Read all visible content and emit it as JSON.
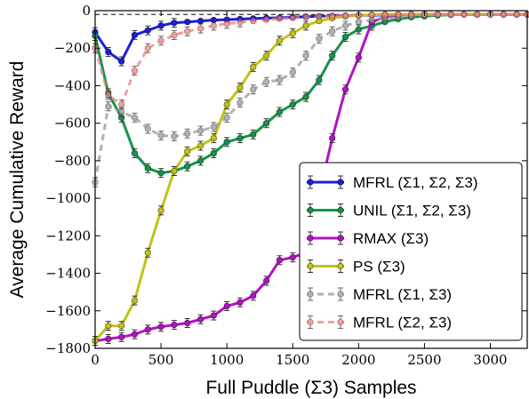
{
  "chart_data": {
    "type": "line",
    "xlabel": "Full Puddle (Σ3) Samples",
    "ylabel": "Average Cumulative Reward",
    "xlim": [
      0,
      3280
    ],
    "ylim": [
      -1800,
      0
    ],
    "xticks": [
      0,
      500,
      1000,
      1500,
      2000,
      2500,
      3000
    ],
    "yticks": [
      0,
      -200,
      -400,
      -600,
      -800,
      -1000,
      -1200,
      -1400,
      -1600,
      -1800
    ],
    "reference_line_y": -20,
    "legend_position": "bottom-right",
    "series": [
      {
        "name": "MFRL (Σ1, Σ2, Σ3)",
        "color": "#1f1fd6",
        "style": "solid",
        "points": [
          [
            0,
            -115
          ],
          [
            100,
            -220
          ],
          [
            200,
            -270
          ],
          [
            300,
            -130
          ],
          [
            400,
            -105
          ],
          [
            500,
            -80
          ],
          [
            600,
            -65
          ],
          [
            700,
            -60
          ],
          [
            800,
            -55
          ],
          [
            900,
            -50
          ],
          [
            1000,
            -48
          ],
          [
            1100,
            -45
          ],
          [
            1200,
            -42
          ],
          [
            1300,
            -40
          ],
          [
            1400,
            -38
          ],
          [
            1500,
            -35
          ],
          [
            1600,
            -32
          ],
          [
            1700,
            -30
          ],
          [
            1800,
            -28
          ],
          [
            1900,
            -27
          ],
          [
            2000,
            -25
          ],
          [
            2100,
            -24
          ],
          [
            2200,
            -23
          ],
          [
            2300,
            -22
          ],
          [
            2400,
            -21
          ],
          [
            2500,
            -21
          ],
          [
            2600,
            -20
          ],
          [
            2700,
            -20
          ],
          [
            2800,
            -20
          ],
          [
            2900,
            -20
          ],
          [
            3000,
            -20
          ],
          [
            3100,
            -20
          ],
          [
            3200,
            -20
          ],
          [
            3280,
            -20
          ]
        ]
      },
      {
        "name": "UNIL (Σ1, Σ2, Σ3)",
        "color": "#17934a",
        "style": "solid",
        "points": [
          [
            0,
            -135
          ],
          [
            100,
            -440
          ],
          [
            200,
            -570
          ],
          [
            300,
            -760
          ],
          [
            400,
            -840
          ],
          [
            500,
            -865
          ],
          [
            600,
            -855
          ],
          [
            700,
            -830
          ],
          [
            800,
            -800
          ],
          [
            900,
            -760
          ],
          [
            1000,
            -700
          ],
          [
            1100,
            -680
          ],
          [
            1200,
            -660
          ],
          [
            1300,
            -600
          ],
          [
            1400,
            -540
          ],
          [
            1500,
            -500
          ],
          [
            1600,
            -460
          ],
          [
            1700,
            -370
          ],
          [
            1800,
            -240
          ],
          [
            1900,
            -140
          ],
          [
            2000,
            -100
          ],
          [
            2100,
            -80
          ],
          [
            2200,
            -60
          ],
          [
            2300,
            -45
          ],
          [
            2400,
            -35
          ],
          [
            2500,
            -30
          ],
          [
            2600,
            -25
          ],
          [
            2700,
            -22
          ],
          [
            2800,
            -20
          ],
          [
            2900,
            -20
          ],
          [
            3000,
            -20
          ],
          [
            3100,
            -20
          ],
          [
            3200,
            -20
          ],
          [
            3280,
            -20
          ]
        ]
      },
      {
        "name": "RMAX (Σ3)",
        "color": "#b015c0",
        "style": "solid",
        "points": [
          [
            0,
            -1760
          ],
          [
            100,
            -1750
          ],
          [
            200,
            -1740
          ],
          [
            300,
            -1725
          ],
          [
            400,
            -1700
          ],
          [
            500,
            -1685
          ],
          [
            600,
            -1675
          ],
          [
            700,
            -1665
          ],
          [
            800,
            -1645
          ],
          [
            900,
            -1625
          ],
          [
            1000,
            -1575
          ],
          [
            1100,
            -1555
          ],
          [
            1200,
            -1520
          ],
          [
            1300,
            -1440
          ],
          [
            1400,
            -1330
          ],
          [
            1500,
            -1315
          ],
          [
            1600,
            -1290
          ],
          [
            1700,
            -980
          ],
          [
            1800,
            -680
          ],
          [
            1900,
            -420
          ],
          [
            2000,
            -250
          ],
          [
            2100,
            -60
          ],
          [
            2200,
            -35
          ],
          [
            2300,
            -25
          ],
          [
            2400,
            -20
          ],
          [
            2500,
            -20
          ],
          [
            2600,
            -20
          ],
          [
            2700,
            -20
          ],
          [
            2800,
            -20
          ],
          [
            2900,
            -20
          ],
          [
            3000,
            -20
          ],
          [
            3100,
            -20
          ],
          [
            3200,
            -20
          ],
          [
            3280,
            -20
          ]
        ]
      },
      {
        "name": "PS (Σ3)",
        "color": "#c2c21a",
        "style": "solid",
        "points": [
          [
            0,
            -1760
          ],
          [
            100,
            -1680
          ],
          [
            200,
            -1680
          ],
          [
            300,
            -1545
          ],
          [
            400,
            -1290
          ],
          [
            500,
            -1065
          ],
          [
            600,
            -855
          ],
          [
            700,
            -750
          ],
          [
            800,
            -720
          ],
          [
            900,
            -680
          ],
          [
            1000,
            -500
          ],
          [
            1100,
            -410
          ],
          [
            1200,
            -300
          ],
          [
            1300,
            -240
          ],
          [
            1400,
            -160
          ],
          [
            1500,
            -120
          ],
          [
            1600,
            -80
          ],
          [
            1700,
            -55
          ],
          [
            1800,
            -40
          ],
          [
            1900,
            -30
          ],
          [
            2000,
            -25
          ],
          [
            2100,
            -22
          ],
          [
            2200,
            -20
          ],
          [
            2300,
            -20
          ],
          [
            2400,
            -20
          ],
          [
            2500,
            -20
          ],
          [
            2600,
            -20
          ],
          [
            2700,
            -20
          ],
          [
            2800,
            -20
          ],
          [
            2900,
            -20
          ],
          [
            3000,
            -20
          ],
          [
            3100,
            -20
          ],
          [
            3200,
            -20
          ],
          [
            3280,
            -20
          ]
        ]
      },
      {
        "name": "MFRL (Σ1, Σ3)",
        "color": "#999999",
        "style": "dashed",
        "points": [
          [
            0,
            -915
          ],
          [
            100,
            -510
          ],
          [
            200,
            -540
          ],
          [
            300,
            -570
          ],
          [
            400,
            -630
          ],
          [
            500,
            -665
          ],
          [
            600,
            -670
          ],
          [
            700,
            -655
          ],
          [
            800,
            -640
          ],
          [
            900,
            -620
          ],
          [
            1000,
            -570
          ],
          [
            1100,
            -490
          ],
          [
            1200,
            -420
          ],
          [
            1300,
            -380
          ],
          [
            1400,
            -370
          ],
          [
            1500,
            -330
          ],
          [
            1600,
            -240
          ],
          [
            1700,
            -150
          ],
          [
            1800,
            -110
          ],
          [
            1900,
            -80
          ],
          [
            2000,
            -60
          ],
          [
            2100,
            -50
          ],
          [
            2200,
            -40
          ],
          [
            2300,
            -35
          ],
          [
            2400,
            -30
          ],
          [
            2500,
            -25
          ],
          [
            2600,
            -22
          ],
          [
            2700,
            -20
          ],
          [
            2800,
            -20
          ],
          [
            2900,
            -20
          ],
          [
            3000,
            -20
          ],
          [
            3100,
            -20
          ],
          [
            3200,
            -20
          ],
          [
            3280,
            -20
          ]
        ]
      },
      {
        "name": "MFRL (Σ2, Σ3)",
        "color": "#f08080",
        "style": "dashed",
        "points": [
          [
            0,
            -200
          ],
          [
            100,
            -450
          ],
          [
            200,
            -500
          ],
          [
            300,
            -320
          ],
          [
            400,
            -200
          ],
          [
            500,
            -160
          ],
          [
            600,
            -130
          ],
          [
            700,
            -110
          ],
          [
            800,
            -95
          ],
          [
            900,
            -80
          ],
          [
            1000,
            -70
          ],
          [
            1100,
            -62
          ],
          [
            1200,
            -55
          ],
          [
            1300,
            -48
          ],
          [
            1400,
            -42
          ],
          [
            1500,
            -38
          ],
          [
            1600,
            -34
          ],
          [
            1700,
            -30
          ],
          [
            1800,
            -28
          ],
          [
            1900,
            -26
          ],
          [
            2000,
            -24
          ],
          [
            2100,
            -22
          ],
          [
            2200,
            -21
          ],
          [
            2300,
            -20
          ],
          [
            2400,
            -20
          ],
          [
            2500,
            -20
          ],
          [
            2600,
            -20
          ],
          [
            2700,
            -20
          ],
          [
            2800,
            -20
          ],
          [
            2900,
            -20
          ],
          [
            3000,
            -20
          ],
          [
            3100,
            -20
          ],
          [
            3200,
            -20
          ],
          [
            3280,
            -20
          ]
        ]
      }
    ]
  }
}
